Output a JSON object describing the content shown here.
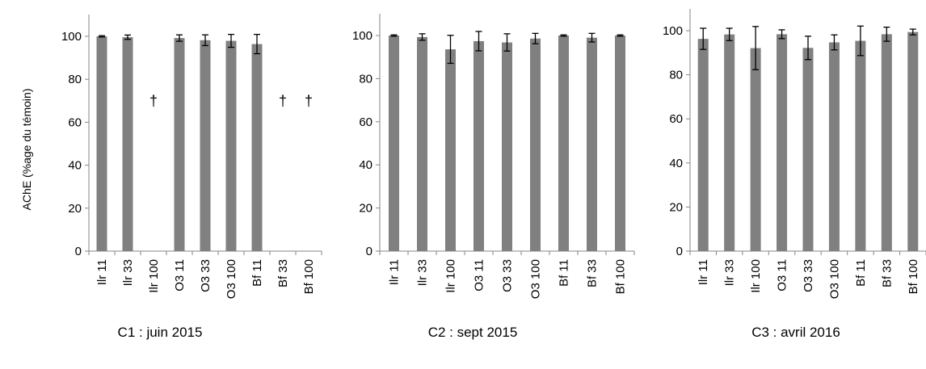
{
  "ylabel": "AChE  (%age du témoin)",
  "colors": {
    "bar": "#808080",
    "axis": "#868686",
    "error": "#000000"
  },
  "chart_data": [
    {
      "type": "bar",
      "title": "C1 : juin 2015",
      "ylim": [
        0,
        100
      ],
      "yticks": [
        0,
        20,
        40,
        60,
        80,
        100
      ],
      "categories": [
        "Ilr 11",
        "Ilr 33",
        "Ilr 100",
        "O3 11",
        "O3 33",
        "O3 100",
        "Bf 11",
        "Bf 33",
        "Bf 100"
      ],
      "values": [
        100,
        99.6,
        null,
        99.2,
        98.2,
        97.9,
        96.4,
        null,
        null
      ],
      "errors": [
        0.3,
        1.0,
        null,
        1.5,
        2.5,
        3.0,
        4.5,
        null,
        null
      ],
      "dead_marker": "†",
      "dead_categories": [
        "Ilr 100",
        "Bf 33",
        "Bf 100"
      ]
    },
    {
      "type": "bar",
      "title": "C2 : sept 2015",
      "ylim": [
        0,
        100
      ],
      "yticks": [
        0,
        20,
        40,
        60,
        80,
        100
      ],
      "categories": [
        "Ilr 11",
        "Ilr 33",
        "Ilr 100",
        "O3 11",
        "O3 33",
        "O3 100",
        "Bf 11",
        "Bf 33",
        "Bf 100"
      ],
      "values": [
        100,
        99.3,
        93.6,
        97.4,
        96.8,
        98.6,
        100,
        99.0,
        100
      ],
      "errors": [
        0.3,
        1.5,
        6.5,
        4.5,
        4.0,
        2.4,
        0.3,
        2.0,
        0.3
      ]
    },
    {
      "type": "bar",
      "title": "C3 : avril 2016",
      "ylim": [
        0,
        100
      ],
      "yticks": [
        0,
        20,
        40,
        60,
        80,
        100
      ],
      "categories": [
        "Ilr 11",
        "Ilr 33",
        "Ilr 100",
        "O3 11",
        "O3 33",
        "O3 100",
        "Bf 11",
        "Bf 33",
        "Bf 100"
      ],
      "values": [
        96.3,
        98.3,
        92.1,
        98.4,
        92.2,
        94.7,
        95.4,
        98.4,
        99.4
      ],
      "errors": [
        4.8,
        2.8,
        9.8,
        2.0,
        5.3,
        3.4,
        6.7,
        3.2,
        1.3
      ]
    }
  ]
}
